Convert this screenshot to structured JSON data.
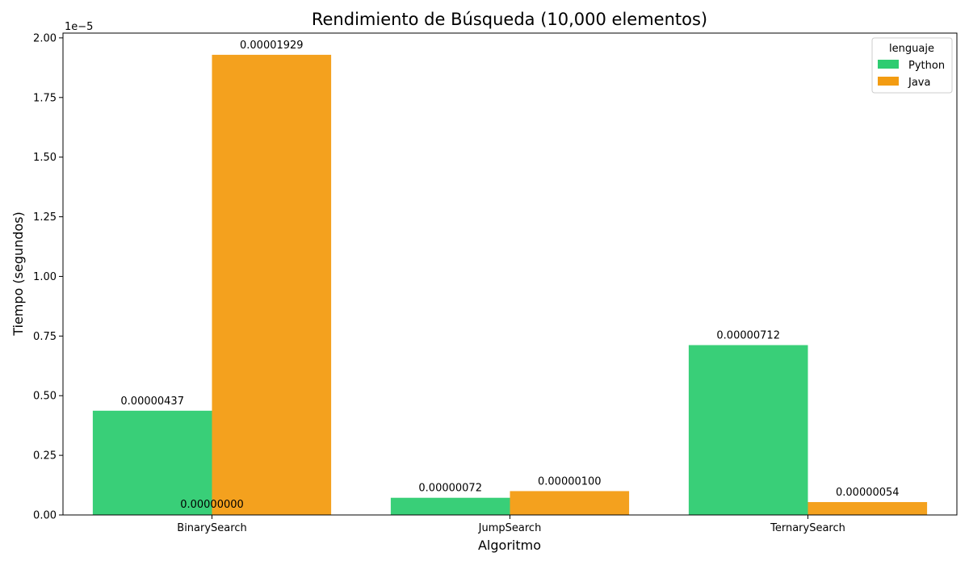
{
  "chart_data": {
    "type": "bar",
    "title": "Rendimiento de Búsqueda (10,000 elementos)",
    "xlabel": "Algoritmo",
    "ylabel": "Tiempo (segundos)",
    "y_offset_text": "1e−5",
    "categories": [
      "BinarySearch",
      "JumpSearch",
      "TernarySearch"
    ],
    "series": [
      {
        "name": "Python",
        "color": "#2ecc71",
        "values": [
          4.37e-06,
          7.2e-07,
          7.12e-06
        ],
        "labels": [
          "0.00000437",
          "0.00000072",
          "0.00000712"
        ]
      },
      {
        "name": "Java",
        "color": "#f39c12",
        "values": [
          1.929e-05,
          1e-06,
          5.4e-07
        ],
        "labels": [
          "0.00001929",
          "0.00000100",
          "0.00000054"
        ]
      }
    ],
    "extra_annotation": {
      "text": "0.00000000",
      "category": "BinarySearch",
      "value": 0
    },
    "ylim": [
      0,
      2.02e-05
    ],
    "y_ticks": [
      0,
      2.5e-06,
      5e-06,
      7.5e-06,
      1e-05,
      1.25e-05,
      1.5e-05,
      1.75e-05,
      2e-05
    ],
    "y_tick_labels": [
      "0.00",
      "0.25",
      "0.50",
      "0.75",
      "1.00",
      "1.25",
      "1.50",
      "1.75",
      "2.00"
    ],
    "legend": {
      "title": "lenguaje",
      "position": "top-right"
    },
    "grid": false
  }
}
